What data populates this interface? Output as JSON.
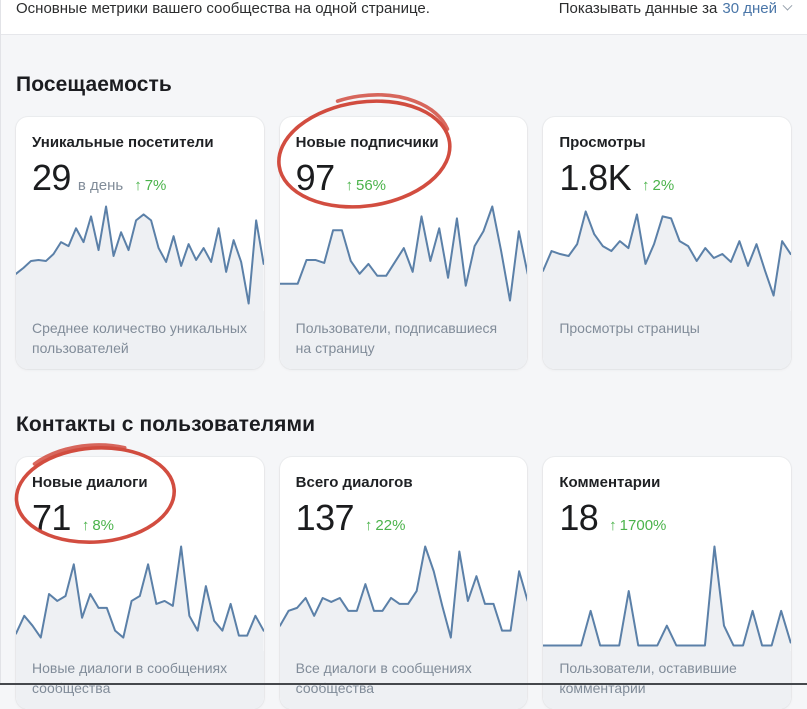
{
  "header": {
    "subtitle": "Основные метрики вашего сообщества на одной странице.",
    "period_label": "Показывать данные за",
    "period_value": "30 дней"
  },
  "colors": {
    "accent_link": "#4a76a8",
    "positive_green": "#4bb34b",
    "spark_line": "#5b80a8",
    "spark_fill": "#eef0f3",
    "annotation_red": "#cf3e30",
    "page_background": "#f5f6f8",
    "card_background": "#ffffff"
  },
  "icons": {
    "up_arrow": "↑"
  },
  "sections": [
    {
      "title": "Посещаемость",
      "cards": [
        {
          "title": "Уникальные посетители",
          "value": "29",
          "unit": "в день",
          "change": "7%",
          "description": "Среднее количество уникальных пользователей",
          "circled": false
        },
        {
          "title": "Новые подписчики",
          "value": "97",
          "unit": "",
          "change": "56%",
          "description": "Пользователи, подписавшиеся на страницу",
          "circled": true
        },
        {
          "title": "Просмотры",
          "value": "1.8K",
          "unit": "",
          "change": "2%",
          "description": "Просмотры страницы",
          "circled": false
        }
      ]
    },
    {
      "title": "Контакты с пользователями",
      "cards": [
        {
          "title": "Новые диалоги",
          "value": "71",
          "unit": "",
          "change": "8%",
          "description": "Новые диалоги в сообщениях сообщества",
          "circled": true
        },
        {
          "title": "Всего диалогов",
          "value": "137",
          "unit": "",
          "change": "22%",
          "description": "Все диалоги в сообщениях сообщества",
          "circled": false
        },
        {
          "title": "Комментарии",
          "value": "18",
          "unit": "",
          "change": "1700%",
          "description": "Пользователи, оставившие комментарии",
          "circled": false
        }
      ]
    }
  ],
  "chart_data": [
    {
      "metric": "Уникальные посетители",
      "type": "line",
      "period": "30 дней",
      "legend": "none",
      "axes": "hidden",
      "scale": "relative_0_100",
      "values": [
        32,
        38,
        45,
        46,
        45,
        52,
        64,
        60,
        78,
        64,
        90,
        56,
        100,
        50,
        74,
        56,
        86,
        92,
        86,
        58,
        44,
        70,
        40,
        62,
        46,
        58,
        44,
        78,
        34,
        66,
        44,
        2,
        86,
        42
      ]
    },
    {
      "metric": "Новые подписчики",
      "type": "line",
      "period": "30 дней",
      "legend": "none",
      "axes": "hidden",
      "scale": "relative_0_100",
      "values": [
        22,
        22,
        22,
        46,
        46,
        43,
        76,
        76,
        45,
        32,
        42,
        30,
        30,
        44,
        58,
        34,
        90,
        45,
        78,
        28,
        88,
        20,
        60,
        75,
        100,
        55,
        5,
        75,
        32
      ]
    },
    {
      "metric": "Просмотры",
      "type": "line",
      "period": "30 дней",
      "legend": "none",
      "axes": "hidden",
      "scale": "relative_0_100",
      "values": [
        35,
        55,
        52,
        50,
        62,
        95,
        72,
        60,
        55,
        65,
        58,
        92,
        42,
        62,
        90,
        88,
        65,
        60,
        45,
        58,
        48,
        52,
        44,
        65,
        40,
        62,
        35,
        10,
        65,
        52
      ]
    },
    {
      "metric": "Новые диалоги",
      "type": "line",
      "period": "30 дней",
      "legend": "none",
      "axes": "hidden",
      "scale": "relative_0_100",
      "values": [
        12,
        30,
        20,
        8,
        52,
        45,
        50,
        82,
        28,
        52,
        38,
        38,
        15,
        8,
        45,
        50,
        82,
        42,
        45,
        40,
        100,
        30,
        15,
        60,
        25,
        15,
        42,
        10,
        10,
        30,
        15
      ]
    },
    {
      "metric": "Всего диалогов",
      "type": "line",
      "period": "30 дней",
      "legend": "none",
      "axes": "hidden",
      "scale": "relative_0_100",
      "values": [
        20,
        35,
        38,
        48,
        30,
        48,
        44,
        48,
        35,
        35,
        62,
        35,
        35,
        48,
        42,
        42,
        55,
        100,
        75,
        40,
        8,
        95,
        45,
        70,
        42,
        42,
        15,
        15,
        75,
        45
      ]
    },
    {
      "metric": "Комментарии",
      "type": "line",
      "period": "30 дней",
      "legend": "none",
      "axes": "hidden",
      "scale": "relative_0_100",
      "values": [
        0,
        0,
        0,
        0,
        0,
        35,
        0,
        0,
        0,
        55,
        0,
        0,
        0,
        20,
        0,
        0,
        0,
        0,
        100,
        20,
        0,
        0,
        35,
        0,
        0,
        35,
        3
      ]
    }
  ]
}
